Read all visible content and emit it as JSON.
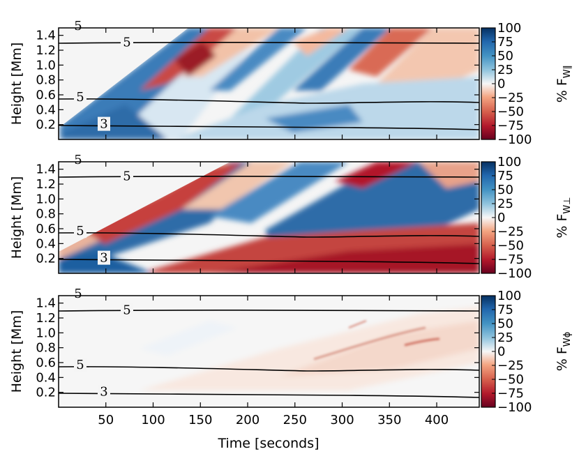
{
  "figure": {
    "xlabel": "Time [seconds]",
    "ylabel": "Height [Mm]"
  },
  "chart_data": [
    {
      "type": "heatmap",
      "panel": "top",
      "quantity": "% F_W∥",
      "colorbar_label": "% F",
      "colorbar_subscript": "W∥",
      "x_range": [
        0,
        445
      ],
      "y_range": [
        0.0,
        1.5
      ],
      "x_ticks": [
        "50",
        "100",
        "150",
        "200",
        "250",
        "300",
        "350",
        "400"
      ],
      "x_tick_values": [
        50,
        100,
        150,
        200,
        250,
        300,
        350,
        400
      ],
      "y_ticks": [
        "0.2",
        "0.4",
        "0.6",
        "0.8",
        "1.0",
        "1.2",
        "1.4"
      ],
      "y_tick_values": [
        0.2,
        0.4,
        0.6,
        0.8,
        1.0,
        1.2,
        1.4
      ],
      "colorbar_ticks": [
        "100",
        "75",
        "50",
        "25",
        "0",
        "−25",
        "−50",
        "−75",
        "−100"
      ],
      "colorbar_range": [
        -100,
        100
      ],
      "contours": [
        {
          "label": "5",
          "height_mm": 1.31
        },
        {
          "label": "5",
          "height_mm": 0.57
        },
        {
          "label": "3",
          "height_mm": 0.21
        }
      ],
      "edge_label": "5"
    },
    {
      "type": "heatmap",
      "panel": "middle",
      "quantity": "% F_W⊥",
      "colorbar_label": "% F",
      "colorbar_subscript": "W⊥",
      "x_range": [
        0,
        445
      ],
      "y_range": [
        0.0,
        1.5
      ],
      "x_ticks": [
        "50",
        "100",
        "150",
        "200",
        "250",
        "300",
        "350",
        "400"
      ],
      "x_tick_values": [
        50,
        100,
        150,
        200,
        250,
        300,
        350,
        400
      ],
      "y_ticks": [
        "0.2",
        "0.4",
        "0.6",
        "0.8",
        "1.0",
        "1.2",
        "1.4"
      ],
      "y_tick_values": [
        0.2,
        0.4,
        0.6,
        0.8,
        1.0,
        1.2,
        1.4
      ],
      "colorbar_ticks": [
        "100",
        "75",
        "50",
        "25",
        "0",
        "−25",
        "−50",
        "−75",
        "−100"
      ],
      "colorbar_range": [
        -100,
        100
      ],
      "contours": [
        {
          "label": "5",
          "height_mm": 1.31
        },
        {
          "label": "5",
          "height_mm": 0.57
        },
        {
          "label": "3",
          "height_mm": 0.21
        }
      ],
      "edge_label": "5"
    },
    {
      "type": "heatmap",
      "panel": "bottom",
      "quantity": "% F_Wϕ",
      "colorbar_label": "% F",
      "colorbar_subscript": "Wϕ",
      "x_range": [
        0,
        445
      ],
      "y_range": [
        0.0,
        1.5
      ],
      "x_ticks": [
        "50",
        "100",
        "150",
        "200",
        "250",
        "300",
        "350",
        "400"
      ],
      "x_tick_values": [
        50,
        100,
        150,
        200,
        250,
        300,
        350,
        400
      ],
      "y_ticks": [
        "0.2",
        "0.4",
        "0.6",
        "0.8",
        "1.0",
        "1.2",
        "1.4"
      ],
      "y_tick_values": [
        0.2,
        0.4,
        0.6,
        0.8,
        1.0,
        1.2,
        1.4
      ],
      "colorbar_ticks": [
        "100",
        "75",
        "50",
        "25",
        "0",
        "−25",
        "−50",
        "−75",
        "−100"
      ],
      "colorbar_range": [
        -100,
        100
      ],
      "contours": [
        {
          "label": "5",
          "height_mm": 1.31
        },
        {
          "label": "5",
          "height_mm": 0.57
        },
        {
          "label": "3",
          "height_mm": 0.21
        }
      ],
      "edge_label": "5"
    }
  ],
  "colors": {
    "positive": "#1f5fa0",
    "neutral": "#f7f7f7",
    "negative": "#b2182b"
  }
}
